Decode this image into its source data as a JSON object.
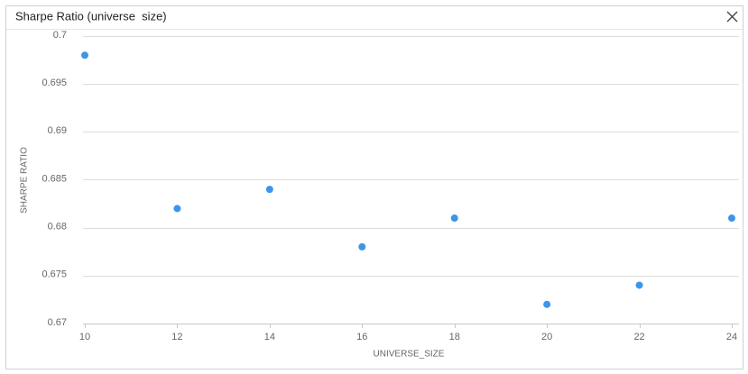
{
  "chart_data": {
    "type": "scatter",
    "title": "Sharpe Ratio (universe  size)",
    "x_label": "UNIVERSE_SIZE",
    "y_label": "SHARPE RATIO",
    "x": [
      10,
      12,
      14,
      16,
      18,
      20,
      22,
      24
    ],
    "series": [
      {
        "name": "Sharpe Ratio",
        "color": "#3d95ea",
        "values": [
          0.698,
          0.682,
          0.684,
          0.678,
          0.681,
          0.672,
          0.674,
          0.681
        ]
      }
    ],
    "xlim": [
      10,
      24
    ],
    "xticks": [
      10,
      12,
      14,
      16,
      18,
      20,
      22,
      24
    ],
    "ylim": [
      0.67,
      0.7
    ],
    "yticks": [
      0.67,
      0.675,
      0.68,
      0.685,
      0.69,
      0.695,
      0.7
    ],
    "grid": true
  }
}
